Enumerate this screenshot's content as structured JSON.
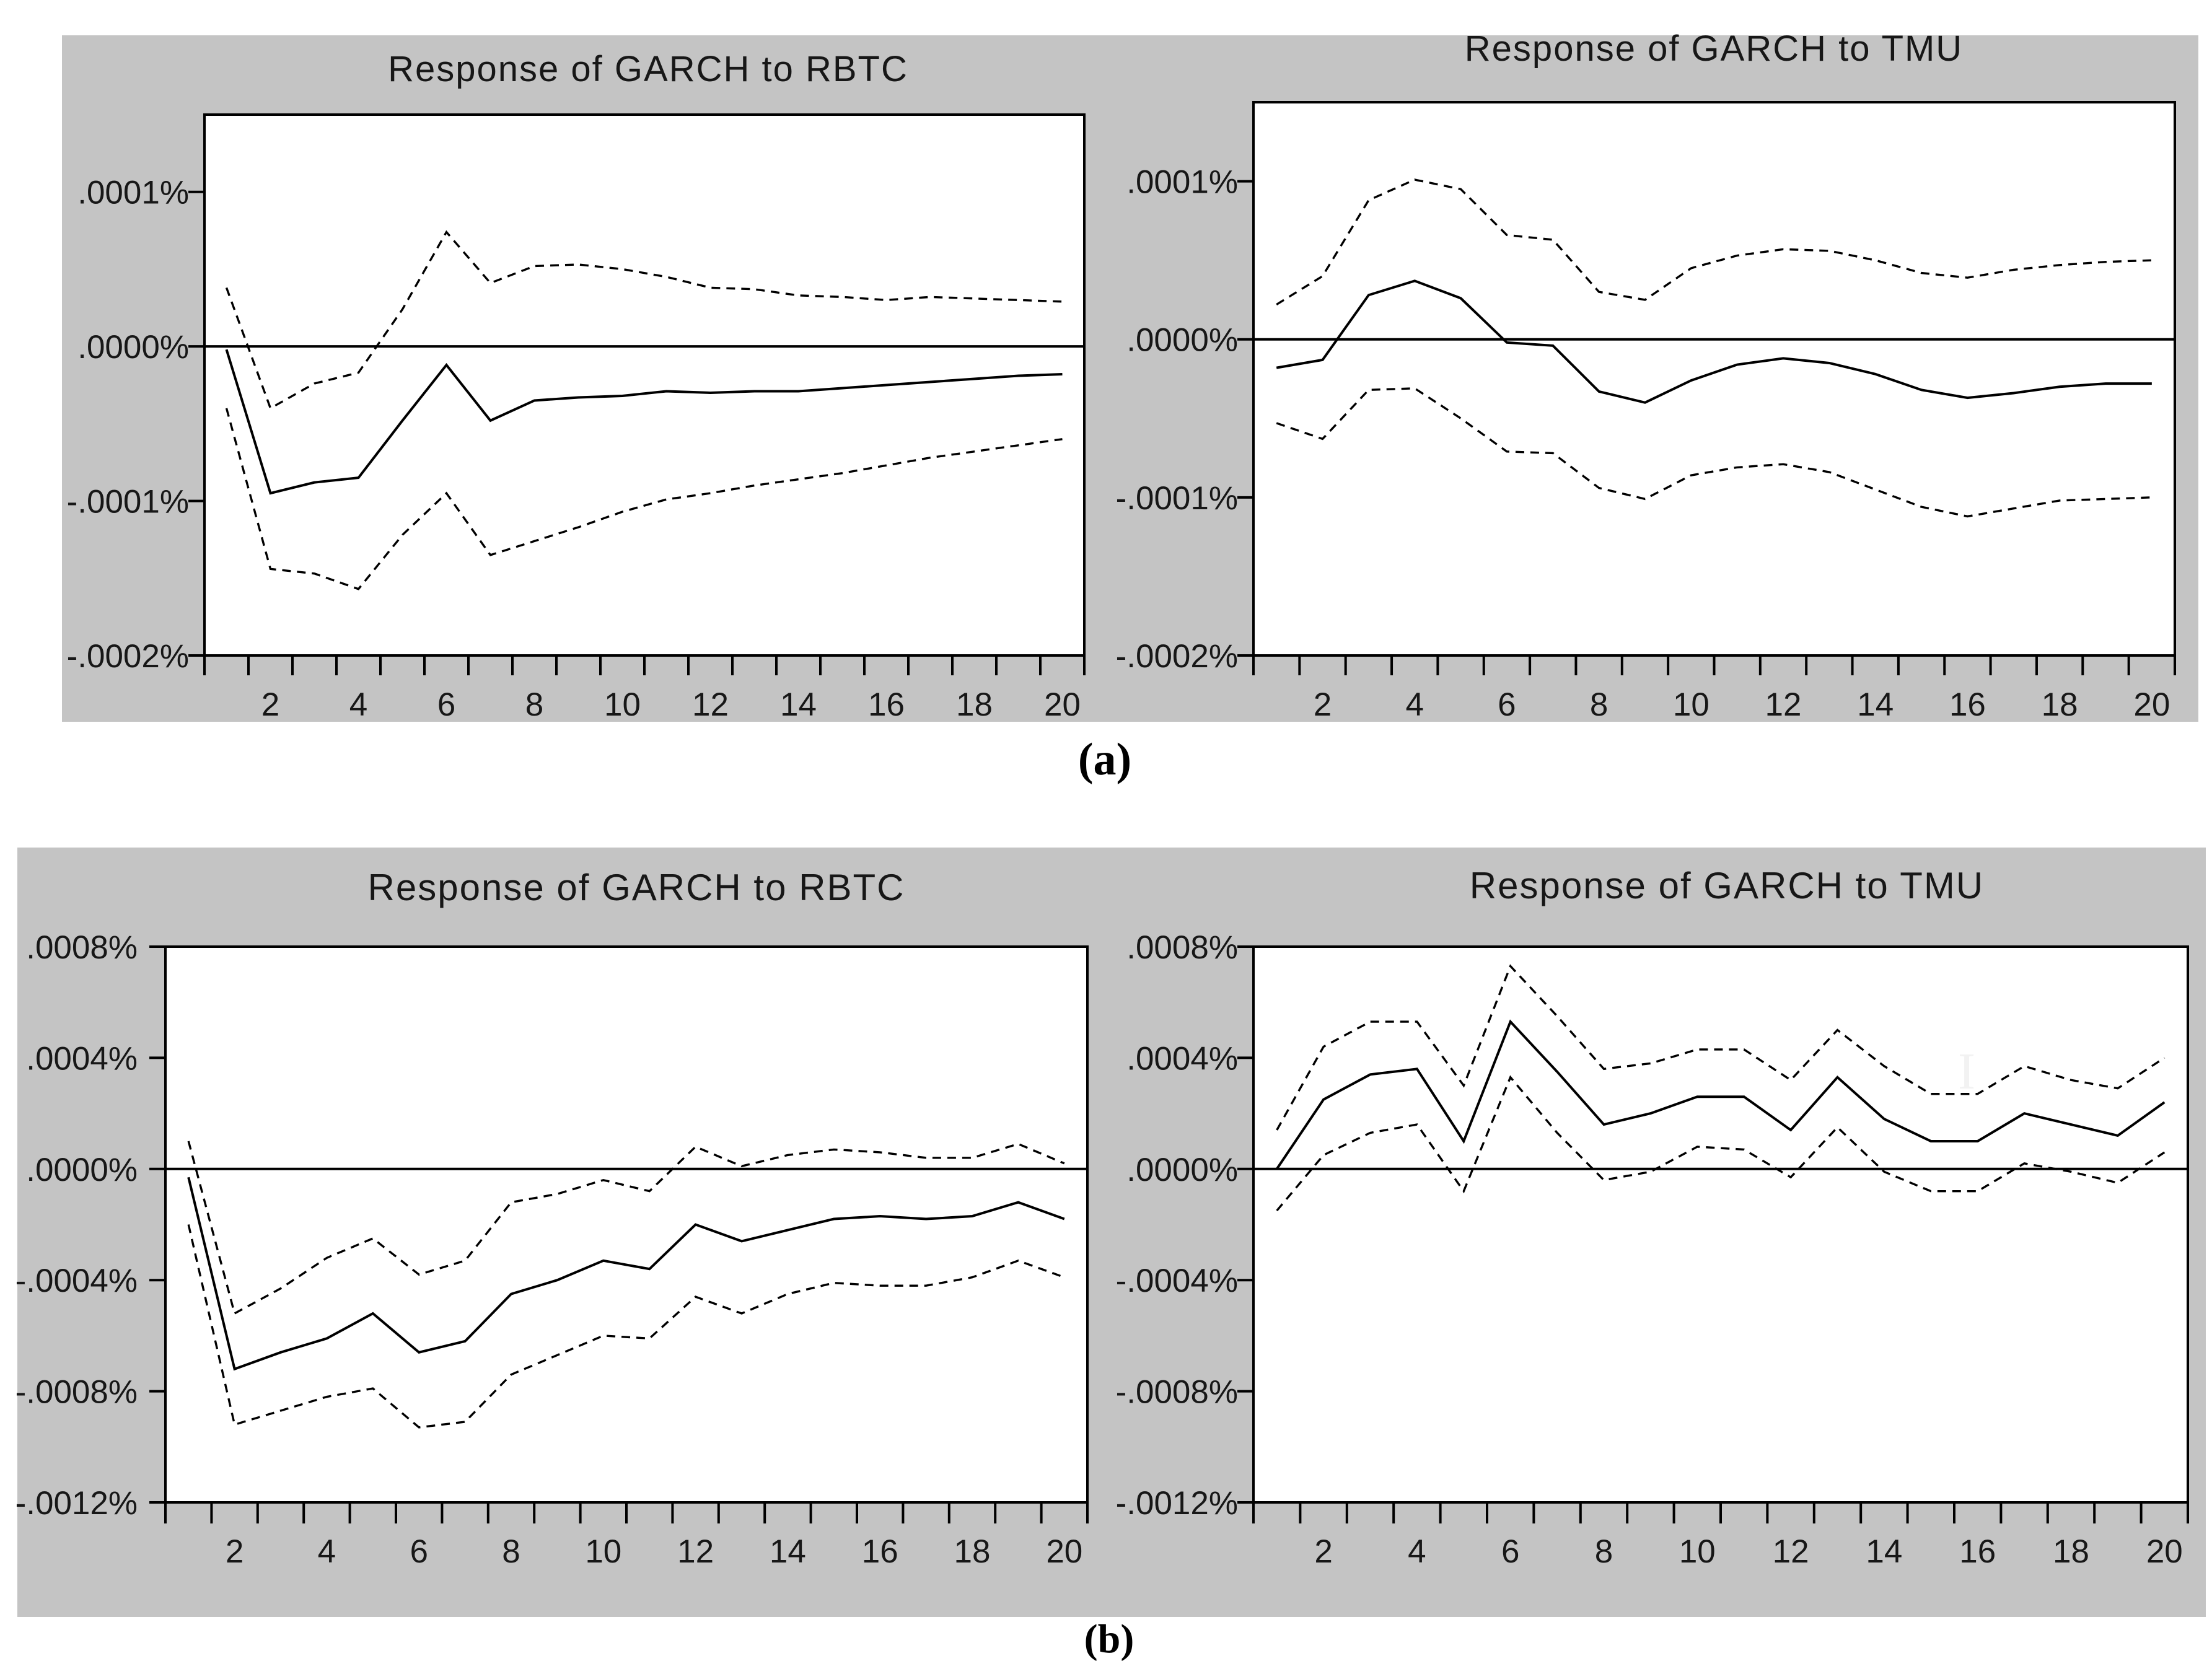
{
  "figure": {
    "captions": {
      "a": "(a)",
      "b": "(b)"
    },
    "artifact_glyph": "I",
    "colors": {
      "panel_background": "#c4c4c4",
      "plot_background": "#ffffff",
      "line_color": "#000000",
      "text_color": "#171717"
    }
  },
  "chart_data": [
    {
      "id": "a-rbtc",
      "type": "line",
      "title": "Response of GARCH to RBTC",
      "panel": "a",
      "grid": false,
      "legend": "none",
      "xlabel": "",
      "ylabel": "",
      "xlim": [
        0.5,
        20.5
      ],
      "ylim": [
        -0.0002,
        0.00015
      ],
      "x": [
        1,
        2,
        3,
        4,
        5,
        6,
        7,
        8,
        9,
        10,
        11,
        12,
        13,
        14,
        15,
        16,
        17,
        18,
        19,
        20
      ],
      "xtick_values": [
        2,
        4,
        6,
        8,
        10,
        12,
        14,
        16,
        18,
        20
      ],
      "xtick_labels": [
        "2",
        "4",
        "6",
        "8",
        "10",
        "12",
        "14",
        "16",
        "18",
        "20"
      ],
      "yticks": [
        {
          "value": 0.0001,
          "label": ".0001%"
        },
        {
          "value": 0.0,
          "label": ".0000%"
        },
        {
          "value": -0.0001,
          "label": "-.0001%"
        },
        {
          "value": -0.0002,
          "label": "-.0002%"
        }
      ],
      "series": [
        {
          "name": "response",
          "style": "solid",
          "values": [
            -2e-06,
            -9.5e-05,
            -8.8e-05,
            -8.5e-05,
            -4.8e-05,
            -1.2e-05,
            -4.8e-05,
            -3.5e-05,
            -3.3e-05,
            -3.2e-05,
            -2.9e-05,
            -3e-05,
            -2.9e-05,
            -2.9e-05,
            -2.7e-05,
            -2.5e-05,
            -2.3e-05,
            -2.1e-05,
            -1.9e-05,
            -1.8e-05
          ]
        },
        {
          "name": "upper_2se_band",
          "style": "dashed",
          "values": [
            3.8e-05,
            -4e-05,
            -2.4e-05,
            -1.7e-05,
            2.4e-05,
            7.4e-05,
            4.1e-05,
            5.2e-05,
            5.3e-05,
            5e-05,
            4.5e-05,
            3.8e-05,
            3.7e-05,
            3.3e-05,
            3.2e-05,
            3e-05,
            3.2e-05,
            3.1e-05,
            3e-05,
            2.9e-05
          ]
        },
        {
          "name": "lower_2se_band",
          "style": "dashed",
          "values": [
            -4e-05,
            -0.000144,
            -0.000147,
            -0.000157,
            -0.000122,
            -9.5e-05,
            -0.000135,
            -0.000126,
            -0.000117,
            -0.000107,
            -9.9e-05,
            -9.5e-05,
            -9e-05,
            -8.6e-05,
            -8.2e-05,
            -7.7e-05,
            -7.2e-05,
            -6.8e-05,
            -6.4e-05,
            -6e-05
          ]
        }
      ]
    },
    {
      "id": "a-tmu",
      "type": "line",
      "title": "Response of GARCH to TMU",
      "panel": "a",
      "grid": false,
      "legend": "none",
      "xlabel": "",
      "ylabel": "",
      "xlim": [
        0.5,
        20.5
      ],
      "ylim": [
        -0.0002,
        0.00015
      ],
      "x": [
        1,
        2,
        3,
        4,
        5,
        6,
        7,
        8,
        9,
        10,
        11,
        12,
        13,
        14,
        15,
        16,
        17,
        18,
        19,
        20
      ],
      "xtick_values": [
        2,
        4,
        6,
        8,
        10,
        12,
        14,
        16,
        18,
        20
      ],
      "xtick_labels": [
        "2",
        "4",
        "6",
        "8",
        "10",
        "12",
        "14",
        "16",
        "18",
        "20"
      ],
      "yticks": [
        {
          "value": 0.0001,
          "label": ".0001%"
        },
        {
          "value": 0.0,
          "label": ".0000%"
        },
        {
          "value": -0.0001,
          "label": "-.0001%"
        },
        {
          "value": -0.0002,
          "label": "-.0002%"
        }
      ],
      "series": [
        {
          "name": "response",
          "style": "solid",
          "values": [
            -1.8e-05,
            -1.3e-05,
            2.8e-05,
            3.7e-05,
            2.6e-05,
            -2e-06,
            -4e-06,
            -3.3e-05,
            -4e-05,
            -2.6e-05,
            -1.6e-05,
            -1.2e-05,
            -1.5e-05,
            -2.2e-05,
            -3.2e-05,
            -3.7e-05,
            -3.4e-05,
            -3e-05,
            -2.8e-05,
            -2.8e-05
          ]
        },
        {
          "name": "upper_2se_band",
          "style": "dashed",
          "values": [
            2.2e-05,
            4e-05,
            8.8e-05,
            0.000101,
            9.5e-05,
            6.6e-05,
            6.3e-05,
            3e-05,
            2.5e-05,
            4.5e-05,
            5.3e-05,
            5.7e-05,
            5.6e-05,
            5e-05,
            4.2e-05,
            3.9e-05,
            4.4e-05,
            4.7e-05,
            4.9e-05,
            5e-05
          ]
        },
        {
          "name": "lower_2se_band",
          "style": "dashed",
          "values": [
            -5.3e-05,
            -6.3e-05,
            -3.2e-05,
            -3.1e-05,
            -5e-05,
            -7.1e-05,
            -7.2e-05,
            -9.4e-05,
            -0.000101,
            -8.6e-05,
            -8.1e-05,
            -7.9e-05,
            -8.4e-05,
            -9.5e-05,
            -0.000106,
            -0.000112,
            -0.000107,
            -0.000102,
            -0.000101,
            -0.0001
          ]
        }
      ]
    },
    {
      "id": "b-rbtc",
      "type": "line",
      "title": "Response of GARCH to RBTC",
      "panel": "b",
      "grid": false,
      "legend": "none",
      "xlabel": "",
      "ylabel": "",
      "xlim": [
        0.5,
        20.5
      ],
      "ylim": [
        -0.0012,
        0.0008
      ],
      "x": [
        1,
        2,
        3,
        4,
        5,
        6,
        7,
        8,
        9,
        10,
        11,
        12,
        13,
        14,
        15,
        16,
        17,
        18,
        19,
        20
      ],
      "xtick_values": [
        2,
        4,
        6,
        8,
        10,
        12,
        14,
        16,
        18,
        20
      ],
      "xtick_labels": [
        "2",
        "4",
        "6",
        "8",
        "10",
        "12",
        "14",
        "16",
        "18",
        "20"
      ],
      "yticks": [
        {
          "value": 0.0008,
          "label": ".0008%"
        },
        {
          "value": 0.0004,
          "label": ".0004%"
        },
        {
          "value": 0.0,
          "label": ".0000%"
        },
        {
          "value": -0.0004,
          "label": "-.0004%"
        },
        {
          "value": -0.0008,
          "label": "-.0008%"
        },
        {
          "value": -0.0012,
          "label": "-.0012%"
        }
      ],
      "series": [
        {
          "name": "response",
          "style": "solid",
          "values": [
            -3e-05,
            -0.00072,
            -0.00066,
            -0.00061,
            -0.00052,
            -0.00066,
            -0.00062,
            -0.00045,
            -0.0004,
            -0.00033,
            -0.00036,
            -0.0002,
            -0.00026,
            -0.00022,
            -0.00018,
            -0.00017,
            -0.00018,
            -0.00017,
            -0.00012,
            -0.00018
          ]
        },
        {
          "name": "upper_2se_band",
          "style": "dashed",
          "values": [
            0.0001,
            -0.00052,
            -0.00043,
            -0.00032,
            -0.00025,
            -0.00038,
            -0.00033,
            -0.00012,
            -9e-05,
            -4e-05,
            -8e-05,
            8e-05,
            1e-05,
            5e-05,
            7e-05,
            6e-05,
            4e-05,
            4e-05,
            9e-05,
            2e-05
          ]
        },
        {
          "name": "lower_2se_band",
          "style": "dashed",
          "values": [
            -0.0002,
            -0.00092,
            -0.00087,
            -0.00082,
            -0.00079,
            -0.00093,
            -0.00091,
            -0.00074,
            -0.00067,
            -0.0006,
            -0.00061,
            -0.00046,
            -0.00052,
            -0.00045,
            -0.00041,
            -0.00042,
            -0.00042,
            -0.00039,
            -0.00033,
            -0.00039
          ]
        }
      ]
    },
    {
      "id": "b-tmu",
      "type": "line",
      "title": "Response of GARCH to TMU",
      "panel": "b",
      "grid": false,
      "legend": "none",
      "xlabel": "",
      "ylabel": "",
      "xlim": [
        0.5,
        20.5
      ],
      "ylim": [
        -0.0012,
        0.0008
      ],
      "x": [
        1,
        2,
        3,
        4,
        5,
        6,
        7,
        8,
        9,
        10,
        11,
        12,
        13,
        14,
        15,
        16,
        17,
        18,
        19,
        20
      ],
      "xtick_values": [
        2,
        4,
        6,
        8,
        10,
        12,
        14,
        16,
        18,
        20
      ],
      "xtick_labels": [
        "2",
        "4",
        "6",
        "8",
        "10",
        "12",
        "14",
        "16",
        "18",
        "20"
      ],
      "yticks": [
        {
          "value": 0.0008,
          "label": ".0008%"
        },
        {
          "value": 0.0004,
          "label": ".0004%"
        },
        {
          "value": 0.0,
          "label": ".0000%"
        },
        {
          "value": -0.0004,
          "label": "-.0004%"
        },
        {
          "value": -0.0008,
          "label": "-.0008%"
        },
        {
          "value": -0.0012,
          "label": "-.0012%"
        }
      ],
      "series": [
        {
          "name": "response",
          "style": "solid",
          "values": [
            0.0,
            0.00025,
            0.00034,
            0.00036,
            0.0001,
            0.00053,
            0.00035,
            0.00016,
            0.0002,
            0.00026,
            0.00026,
            0.00014,
            0.00033,
            0.00018,
            0.0001,
            0.0001,
            0.0002,
            0.00016,
            0.00012,
            0.00024
          ]
        },
        {
          "name": "upper_2se_band",
          "style": "dashed",
          "values": [
            0.00014,
            0.00044,
            0.00053,
            0.00053,
            0.0003,
            0.00073,
            0.00055,
            0.00036,
            0.00038,
            0.00043,
            0.00043,
            0.00032,
            0.0005,
            0.00037,
            0.00027,
            0.00027,
            0.00037,
            0.00032,
            0.00029,
            0.0004
          ]
        },
        {
          "name": "lower_2se_band",
          "style": "dashed",
          "values": [
            -0.00015,
            5e-05,
            0.00013,
            0.00016,
            -8e-05,
            0.00033,
            0.00013,
            -4e-05,
            -1e-05,
            8e-05,
            7e-05,
            -3e-05,
            0.00015,
            -1e-05,
            -8e-05,
            -8e-05,
            2e-05,
            -1e-05,
            -5e-05,
            6e-05
          ]
        }
      ]
    }
  ]
}
